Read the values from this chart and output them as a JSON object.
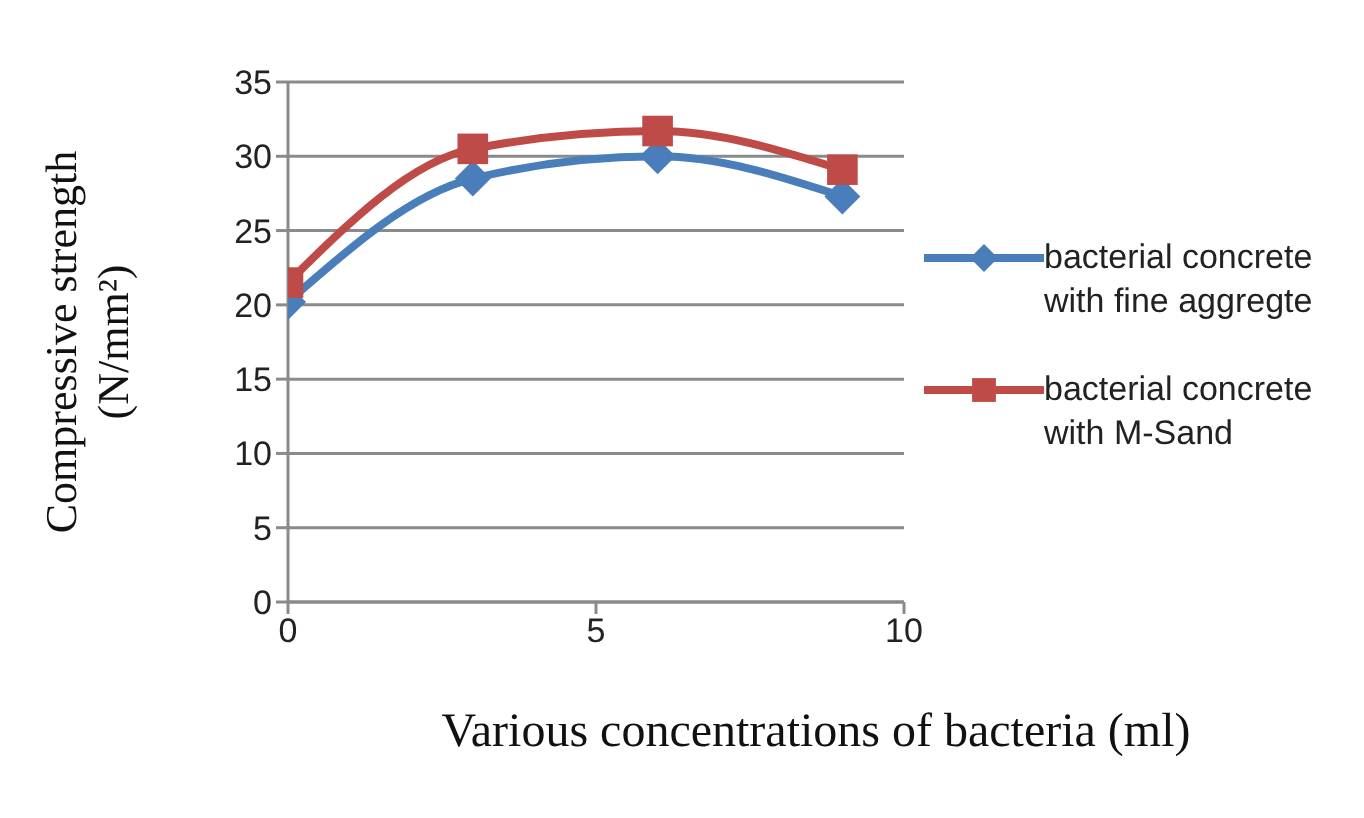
{
  "chart_data": {
    "type": "line",
    "xlabel": "Various concentrations of bacteria (ml)",
    "ylabel": "Compressive strength (N/mm²)",
    "x": [
      0,
      3,
      6,
      9
    ],
    "xlim": [
      0,
      10
    ],
    "xticks": [
      0,
      5,
      10
    ],
    "ylim": [
      0,
      35
    ],
    "yticks": [
      0,
      5,
      10,
      15,
      20,
      25,
      30,
      35
    ],
    "grid": "y",
    "legend": "right",
    "line_style": "solid",
    "series": [
      {
        "name": "bacterial concrete with fine aggregte",
        "color": "#4a7ebb",
        "marker": "diamond",
        "values": [
          20.2,
          28.5,
          30,
          27.3
        ]
      },
      {
        "name": "bacterial concrete with M-Sand",
        "color": "#be4b48",
        "marker": "square",
        "values": [
          21.5,
          30.5,
          31.7,
          29.1
        ]
      }
    ]
  }
}
